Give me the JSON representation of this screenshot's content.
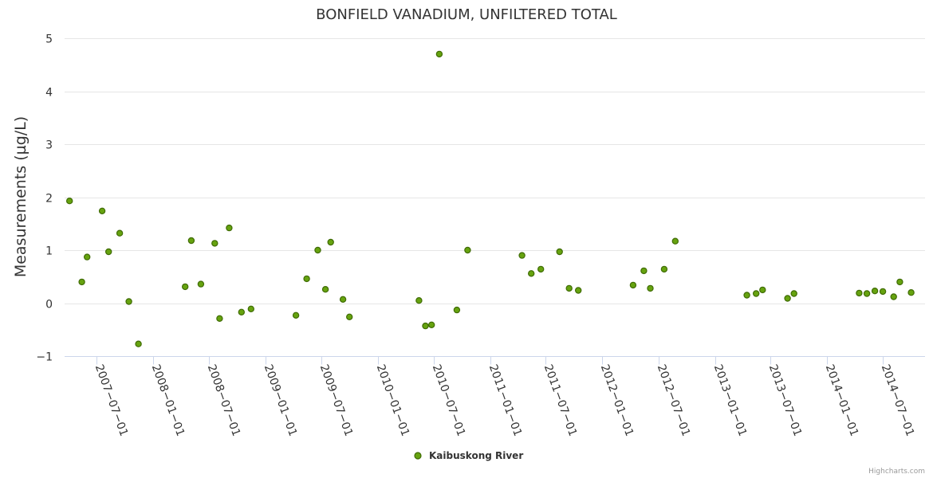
{
  "colors": {
    "marker_fill": "#66a30f",
    "marker_stroke": "#3f6b05"
  },
  "credits": "Highcharts.com",
  "chart_data": {
    "type": "scatter",
    "title": "BONFIELD VANADIUM, UNFILTERED TOTAL",
    "xlabel": "",
    "ylabel": "Measurements (µg/L)",
    "ylim": [
      -1,
      5
    ],
    "yticks": [
      -1,
      0,
      1,
      2,
      3,
      4,
      5
    ],
    "xlim": [
      "2007-03-20",
      "2014-11-15"
    ],
    "xticks": [
      "2007-07-01",
      "2008-01-01",
      "2008-07-01",
      "2009-01-01",
      "2009-07-01",
      "2010-01-01",
      "2010-07-01",
      "2011-01-01",
      "2011-07-01",
      "2012-01-01",
      "2012-07-01",
      "2013-01-01",
      "2013-07-01",
      "2014-01-01",
      "2014-07-01"
    ],
    "legend": "bottom-center",
    "series": [
      {
        "name": "Kaibuskong River",
        "points": [
          {
            "x": "2007-04-05",
            "y": 1.93
          },
          {
            "x": "2007-05-15",
            "y": 0.4
          },
          {
            "x": "2007-06-01",
            "y": 0.87
          },
          {
            "x": "2007-07-20",
            "y": 1.74
          },
          {
            "x": "2007-08-10",
            "y": 0.97
          },
          {
            "x": "2007-09-15",
            "y": 1.32
          },
          {
            "x": "2007-10-15",
            "y": 0.03
          },
          {
            "x": "2007-11-15",
            "y": -0.77
          },
          {
            "x": "2008-04-15",
            "y": 0.31
          },
          {
            "x": "2008-05-05",
            "y": 1.18
          },
          {
            "x": "2008-06-05",
            "y": 0.36
          },
          {
            "x": "2008-07-20",
            "y": 1.13
          },
          {
            "x": "2008-08-05",
            "y": -0.29
          },
          {
            "x": "2008-09-05",
            "y": 1.42
          },
          {
            "x": "2008-10-15",
            "y": -0.17
          },
          {
            "x": "2008-11-15",
            "y": -0.11
          },
          {
            "x": "2009-04-10",
            "y": -0.23
          },
          {
            "x": "2009-05-15",
            "y": 0.46
          },
          {
            "x": "2009-06-20",
            "y": 1.0
          },
          {
            "x": "2009-07-15",
            "y": 0.26
          },
          {
            "x": "2009-08-01",
            "y": 1.15
          },
          {
            "x": "2009-09-10",
            "y": 0.07
          },
          {
            "x": "2009-10-01",
            "y": -0.26
          },
          {
            "x": "2010-05-15",
            "y": 0.05
          },
          {
            "x": "2010-06-05",
            "y": -0.43
          },
          {
            "x": "2010-06-25",
            "y": -0.41
          },
          {
            "x": "2010-07-20",
            "y": 4.7
          },
          {
            "x": "2010-09-15",
            "y": -0.13
          },
          {
            "x": "2010-10-20",
            "y": 1.0
          },
          {
            "x": "2011-04-15",
            "y": 0.9
          },
          {
            "x": "2011-05-15",
            "y": 0.56
          },
          {
            "x": "2011-06-15",
            "y": 0.64
          },
          {
            "x": "2011-08-15",
            "y": 0.97
          },
          {
            "x": "2011-09-15",
            "y": 0.28
          },
          {
            "x": "2011-10-15",
            "y": 0.24
          },
          {
            "x": "2012-04-10",
            "y": 0.34
          },
          {
            "x": "2012-05-15",
            "y": 0.61
          },
          {
            "x": "2012-06-05",
            "y": 0.28
          },
          {
            "x": "2012-07-20",
            "y": 0.64
          },
          {
            "x": "2012-08-25",
            "y": 1.17
          },
          {
            "x": "2013-04-15",
            "y": 0.15
          },
          {
            "x": "2013-05-15",
            "y": 0.18
          },
          {
            "x": "2013-06-05",
            "y": 0.25
          },
          {
            "x": "2013-08-25",
            "y": 0.09
          },
          {
            "x": "2013-09-15",
            "y": 0.18
          },
          {
            "x": "2014-04-15",
            "y": 0.19
          },
          {
            "x": "2014-05-10",
            "y": 0.18
          },
          {
            "x": "2014-06-05",
            "y": 0.23
          },
          {
            "x": "2014-07-01",
            "y": 0.22
          },
          {
            "x": "2014-08-05",
            "y": 0.12
          },
          {
            "x": "2014-08-25",
            "y": 0.4
          },
          {
            "x": "2014-10-01",
            "y": 0.2
          }
        ]
      }
    ]
  }
}
